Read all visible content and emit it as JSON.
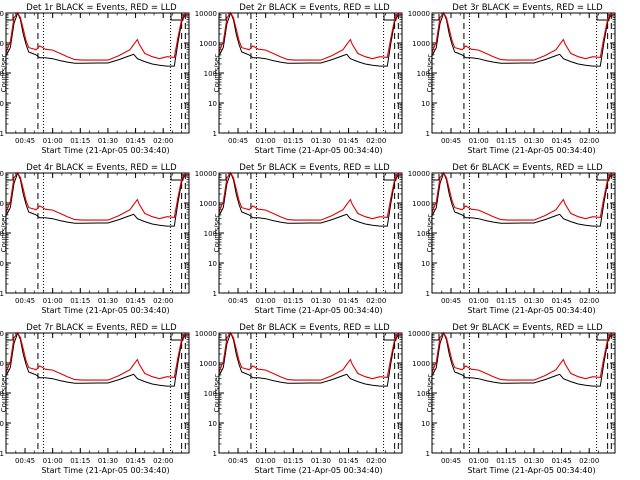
{
  "chart_data": [
    {
      "type": "line",
      "title": "Det 1r BLACK = Events, RED = LLD"
    },
    {
      "type": "line",
      "title": "Det 2r BLACK = Events, RED = LLD"
    },
    {
      "type": "line",
      "title": "Det 3r BLACK = Events, RED = LLD"
    },
    {
      "type": "line",
      "title": "Det 4r BLACK = Events, RED = LLD"
    },
    {
      "type": "line",
      "title": "Det 5r BLACK = Events, RED = LLD"
    },
    {
      "type": "line",
      "title": "Det 6r BLACK = Events, RED = LLD"
    },
    {
      "type": "line",
      "title": "Det 7r BLACK = Events, RED = LLD"
    },
    {
      "type": "line",
      "title": "Det 8r BLACK = Events, RED = LLD"
    },
    {
      "type": "line",
      "title": "Det 9r BLACK = Events, RED = LLD"
    }
  ],
  "common": {
    "xlabel": "Start Time (21-Apr-05 00:34:40)",
    "ylabel": "Counts/sec",
    "x_ticks": [
      "00:45",
      "01:00",
      "01:15",
      "01:30",
      "01:45",
      "02:00"
    ],
    "x_tick_minutes": [
      45,
      60,
      75,
      90,
      105,
      120
    ],
    "xlim_minutes": [
      34.67,
      134.0
    ],
    "y_scale": "log",
    "ylim": [
      1,
      10000
    ],
    "y_ticks": [
      "1",
      "10",
      "100",
      "1000",
      "10000"
    ],
    "y_tick_values": [
      1,
      10,
      100,
      1000,
      10000
    ],
    "dashed_lines_minutes": [
      52,
      130,
      132
    ],
    "dotted_lines_minutes": [
      55,
      124
    ],
    "series": [
      {
        "name": "BLACK = Events",
        "color": "#000000"
      },
      {
        "name": "RED = LLD",
        "color": "#e00000"
      }
    ],
    "red_curve": [
      [
        34.7,
        500
      ],
      [
        37,
        1100
      ],
      [
        39,
        7000
      ],
      [
        41,
        10000
      ],
      [
        42.5,
        7000
      ],
      [
        44,
        3000
      ],
      [
        45.5,
        1200
      ],
      [
        47,
        700
      ],
      [
        49,
        650
      ],
      [
        51,
        600
      ],
      [
        53,
        800
      ],
      [
        56,
        620
      ],
      [
        60,
        580
      ],
      [
        64,
        450
      ],
      [
        68,
        350
      ],
      [
        72,
        280
      ],
      [
        76,
        270
      ],
      [
        84,
        270
      ],
      [
        90,
        270
      ],
      [
        96,
        380
      ],
      [
        102,
        600
      ],
      [
        104,
        900
      ],
      [
        106,
        1300
      ],
      [
        107,
        900
      ],
      [
        110,
        450
      ],
      [
        114,
        350
      ],
      [
        118,
        300
      ],
      [
        122,
        350
      ],
      [
        126,
        330
      ],
      [
        128,
        1500
      ],
      [
        130,
        6000
      ],
      [
        131.5,
        9000
      ],
      [
        133.5,
        9000
      ]
    ],
    "black_curve": [
      [
        34.7,
        380
      ],
      [
        37,
        700
      ],
      [
        39,
        4500
      ],
      [
        41,
        10000
      ],
      [
        42.5,
        6000
      ],
      [
        44,
        2000
      ],
      [
        45.5,
        900
      ],
      [
        47,
        500
      ],
      [
        49,
        450
      ],
      [
        51,
        400
      ],
      [
        53,
        320
      ],
      [
        56,
        320
      ],
      [
        60,
        300
      ],
      [
        64,
        260
      ],
      [
        68,
        230
      ],
      [
        72,
        210
      ],
      [
        76,
        210
      ],
      [
        84,
        215
      ],
      [
        90,
        215
      ],
      [
        96,
        280
      ],
      [
        102,
        380
      ],
      [
        104,
        420
      ],
      [
        106,
        300
      ],
      [
        110,
        240
      ],
      [
        114,
        200
      ],
      [
        118,
        180
      ],
      [
        122,
        170
      ],
      [
        126,
        170
      ],
      [
        128,
        1000
      ],
      [
        130,
        5000
      ],
      [
        131.5,
        8000
      ],
      [
        133.5,
        8000
      ]
    ]
  }
}
